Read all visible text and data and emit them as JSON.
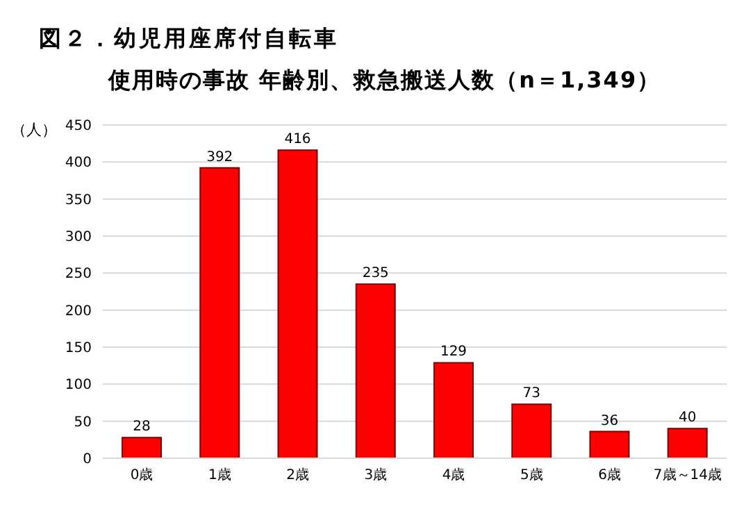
{
  "chart_data": {
    "type": "bar",
    "title": "図２．幼児用座席付自転車",
    "subtitle": "使用時の事故 年齢別、救急搬送人数（n＝1,349）",
    "ylabel": "（人）",
    "categories": [
      "0歳",
      "1歳",
      "2歳",
      "3歳",
      "4歳",
      "5歳",
      "6歳",
      "7歳～14歳"
    ],
    "values": [
      28,
      392,
      416,
      235,
      129,
      73,
      36,
      40
    ],
    "color": "#ff0000",
    "ylim": [
      0,
      450
    ],
    "yticks": [
      0,
      50,
      100,
      150,
      200,
      250,
      300,
      350,
      400,
      450
    ],
    "grid": "y",
    "data_labels": true
  }
}
